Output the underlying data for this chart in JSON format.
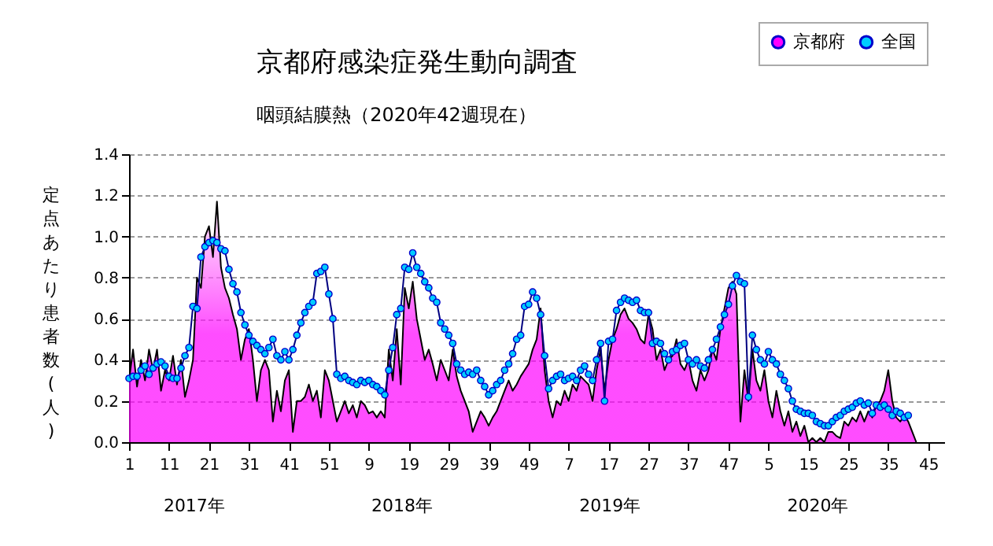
{
  "chart_data": {
    "type": "line",
    "title": "京都府感染症発生動向調査",
    "subtitle": "咽頭結膜熱（2020年42週現在）",
    "ylabel": "定点あたり患者数(人)",
    "annotations": [
      "2017年",
      "2018年",
      "2019年",
      "2020年"
    ],
    "categories": [
      "1",
      null,
      null,
      null,
      null,
      null,
      null,
      null,
      null,
      null,
      "11",
      null,
      null,
      null,
      null,
      null,
      null,
      null,
      null,
      null,
      "21",
      null,
      null,
      null,
      null,
      null,
      null,
      null,
      null,
      null,
      "31",
      null,
      null,
      null,
      null,
      null,
      null,
      null,
      null,
      null,
      "41",
      null,
      null,
      null,
      null,
      null,
      null,
      null,
      null,
      null,
      "51",
      null,
      null,
      null,
      null,
      null,
      null,
      null,
      null,
      null,
      "9",
      null,
      null,
      null,
      null,
      null,
      null,
      null,
      null,
      null,
      "19",
      null,
      null,
      null,
      null,
      null,
      null,
      null,
      null,
      null,
      "29",
      null,
      null,
      null,
      null,
      null,
      null,
      null,
      null,
      null,
      "39",
      null,
      null,
      null,
      null,
      null,
      null,
      null,
      null,
      null,
      "49",
      null,
      null,
      null,
      null,
      null,
      null,
      null,
      null,
      null,
      "7",
      null,
      null,
      null,
      null,
      null,
      null,
      null,
      null,
      null,
      "17",
      null,
      null,
      null,
      null,
      null,
      null,
      null,
      null,
      null,
      "27",
      null,
      null,
      null,
      null,
      null,
      null,
      null,
      null,
      null,
      "37",
      null,
      null,
      null,
      null,
      null,
      null,
      null,
      null,
      null,
      "47",
      null,
      null,
      null,
      null,
      null,
      null,
      null,
      null,
      null,
      "5",
      null,
      null,
      null,
      null,
      null,
      null,
      null,
      null,
      null,
      "15",
      null,
      null,
      null,
      null,
      null,
      null,
      null,
      null,
      null,
      "25",
      null,
      null,
      null,
      null,
      null,
      null,
      null,
      null,
      null,
      "35",
      null,
      null,
      null,
      null,
      null,
      null,
      null,
      null,
      null,
      "45",
      null,
      null,
      null,
      null
    ],
    "series": [
      {
        "name": "京都府",
        "type": "area",
        "marker": "none",
        "color": "#ff00ff",
        "values": [
          0.3,
          0.45,
          0.27,
          0.4,
          0.3,
          0.45,
          0.35,
          0.45,
          0.25,
          0.35,
          0.3,
          0.42,
          0.28,
          0.4,
          0.22,
          0.3,
          0.4,
          0.8,
          0.75,
          1.0,
          1.05,
          0.9,
          1.17,
          0.85,
          0.75,
          0.7,
          0.62,
          0.55,
          0.4,
          0.5,
          0.55,
          0.4,
          0.2,
          0.35,
          0.4,
          0.35,
          0.1,
          0.25,
          0.15,
          0.3,
          0.35,
          0.05,
          0.2,
          0.2,
          0.22,
          0.28,
          0.2,
          0.25,
          0.12,
          0.35,
          0.3,
          0.2,
          0.1,
          0.15,
          0.2,
          0.14,
          0.18,
          0.12,
          0.2,
          0.18,
          0.14,
          0.15,
          0.12,
          0.15,
          0.12,
          0.45,
          0.3,
          0.55,
          0.28,
          0.75,
          0.65,
          0.78,
          0.6,
          0.5,
          0.4,
          0.45,
          0.38,
          0.3,
          0.4,
          0.35,
          0.3,
          0.45,
          0.32,
          0.25,
          0.2,
          0.15,
          0.05,
          0.1,
          0.15,
          0.12,
          0.08,
          0.12,
          0.15,
          0.2,
          0.25,
          0.3,
          0.25,
          0.28,
          0.32,
          0.35,
          0.38,
          0.45,
          0.5,
          0.65,
          0.35,
          0.2,
          0.12,
          0.2,
          0.18,
          0.25,
          0.2,
          0.28,
          0.25,
          0.32,
          0.3,
          0.28,
          0.2,
          0.35,
          0.45,
          0.25,
          0.4,
          0.5,
          0.55,
          0.62,
          0.65,
          0.6,
          0.58,
          0.55,
          0.5,
          0.48,
          0.62,
          0.55,
          0.4,
          0.45,
          0.35,
          0.4,
          0.42,
          0.5,
          0.38,
          0.35,
          0.4,
          0.3,
          0.25,
          0.35,
          0.3,
          0.35,
          0.45,
          0.4,
          0.55,
          0.65,
          0.75,
          0.78,
          0.72,
          0.1,
          0.35,
          0.2,
          0.45,
          0.3,
          0.25,
          0.35,
          0.2,
          0.12,
          0.25,
          0.15,
          0.08,
          0.15,
          0.05,
          0.1,
          0.03,
          0.08,
          0.0,
          0.02,
          0.0,
          0.02,
          0.0,
          0.05,
          0.05,
          0.03,
          0.02,
          0.1,
          0.08,
          0.12,
          0.1,
          0.15,
          0.1,
          0.15,
          0.12,
          0.18,
          0.2,
          0.25,
          0.35,
          0.2,
          0.12,
          0.1,
          0.13,
          0.1,
          0.05,
          0.0,
          null,
          null,
          null,
          null,
          null,
          null,
          null
        ]
      },
      {
        "name": "全国",
        "color": "#00ccff",
        "values": [
          0.31,
          0.32,
          0.32,
          0.35,
          0.37,
          0.33,
          0.36,
          0.38,
          0.39,
          0.37,
          0.32,
          0.31,
          0.31,
          0.36,
          0.42,
          0.46,
          0.66,
          0.65,
          0.9,
          0.95,
          0.97,
          0.98,
          0.97,
          0.94,
          0.93,
          0.84,
          0.77,
          0.73,
          0.63,
          0.57,
          0.52,
          0.49,
          0.47,
          0.45,
          0.43,
          0.46,
          0.5,
          0.42,
          0.4,
          0.44,
          0.4,
          0.45,
          0.52,
          0.58,
          0.63,
          0.66,
          0.68,
          0.82,
          0.83,
          0.85,
          0.72,
          0.6,
          0.33,
          0.31,
          0.32,
          0.3,
          0.29,
          0.28,
          0.3,
          0.29,
          0.3,
          0.28,
          0.27,
          0.25,
          0.23,
          0.35,
          0.46,
          0.62,
          0.65,
          0.85,
          0.84,
          0.92,
          0.85,
          0.82,
          0.78,
          0.75,
          0.7,
          0.68,
          0.58,
          0.55,
          0.52,
          0.48,
          0.38,
          0.35,
          0.33,
          0.34,
          0.33,
          0.35,
          0.3,
          0.27,
          0.23,
          0.25,
          0.28,
          0.3,
          0.35,
          0.38,
          0.43,
          0.5,
          0.52,
          0.66,
          0.67,
          0.73,
          0.7,
          0.62,
          0.42,
          0.26,
          0.3,
          0.32,
          0.33,
          0.3,
          0.31,
          0.32,
          0.3,
          0.35,
          0.37,
          0.33,
          0.3,
          0.4,
          0.48,
          0.2,
          0.49,
          0.5,
          0.64,
          0.68,
          0.7,
          0.69,
          0.68,
          0.69,
          0.64,
          0.63,
          0.63,
          0.48,
          0.49,
          0.48,
          0.43,
          0.4,
          0.44,
          0.45,
          0.47,
          0.48,
          0.4,
          0.38,
          0.4,
          0.37,
          0.36,
          0.4,
          0.45,
          0.5,
          0.56,
          0.62,
          0.67,
          0.76,
          0.81,
          0.78,
          0.77,
          0.22,
          0.52,
          0.45,
          0.4,
          0.38,
          0.44,
          0.4,
          0.38,
          0.33,
          0.3,
          0.26,
          0.2,
          0.16,
          0.15,
          0.14,
          0.14,
          0.13,
          0.1,
          0.09,
          0.08,
          0.08,
          0.1,
          0.12,
          0.13,
          0.15,
          0.16,
          0.17,
          0.19,
          0.2,
          0.18,
          0.19,
          0.14,
          0.18,
          0.17,
          0.18,
          0.16,
          0.13,
          0.15,
          0.14,
          0.12,
          0.13,
          null,
          null,
          null,
          null,
          null,
          null,
          null,
          null,
          null
        ]
      }
    ],
    "ylim": [
      0,
      1.4
    ],
    "yticks": [
      {
        "value": 0,
        "label": "0.0"
      },
      {
        "value": 0.2,
        "label": "0.2"
      },
      {
        "value": 0.4,
        "label": "0.4"
      },
      {
        "value": 0.6,
        "label": "0.6"
      },
      {
        "value": 0.8,
        "label": "0.8"
      },
      {
        "value": 1,
        "label": "1.0"
      },
      {
        "value": 1.2,
        "label": "1.2"
      },
      {
        "value": 1.4,
        "label": "1.4"
      }
    ],
    "grid": "y",
    "legend": "top right",
    "marker": "circle",
    "line_style": "solid"
  }
}
